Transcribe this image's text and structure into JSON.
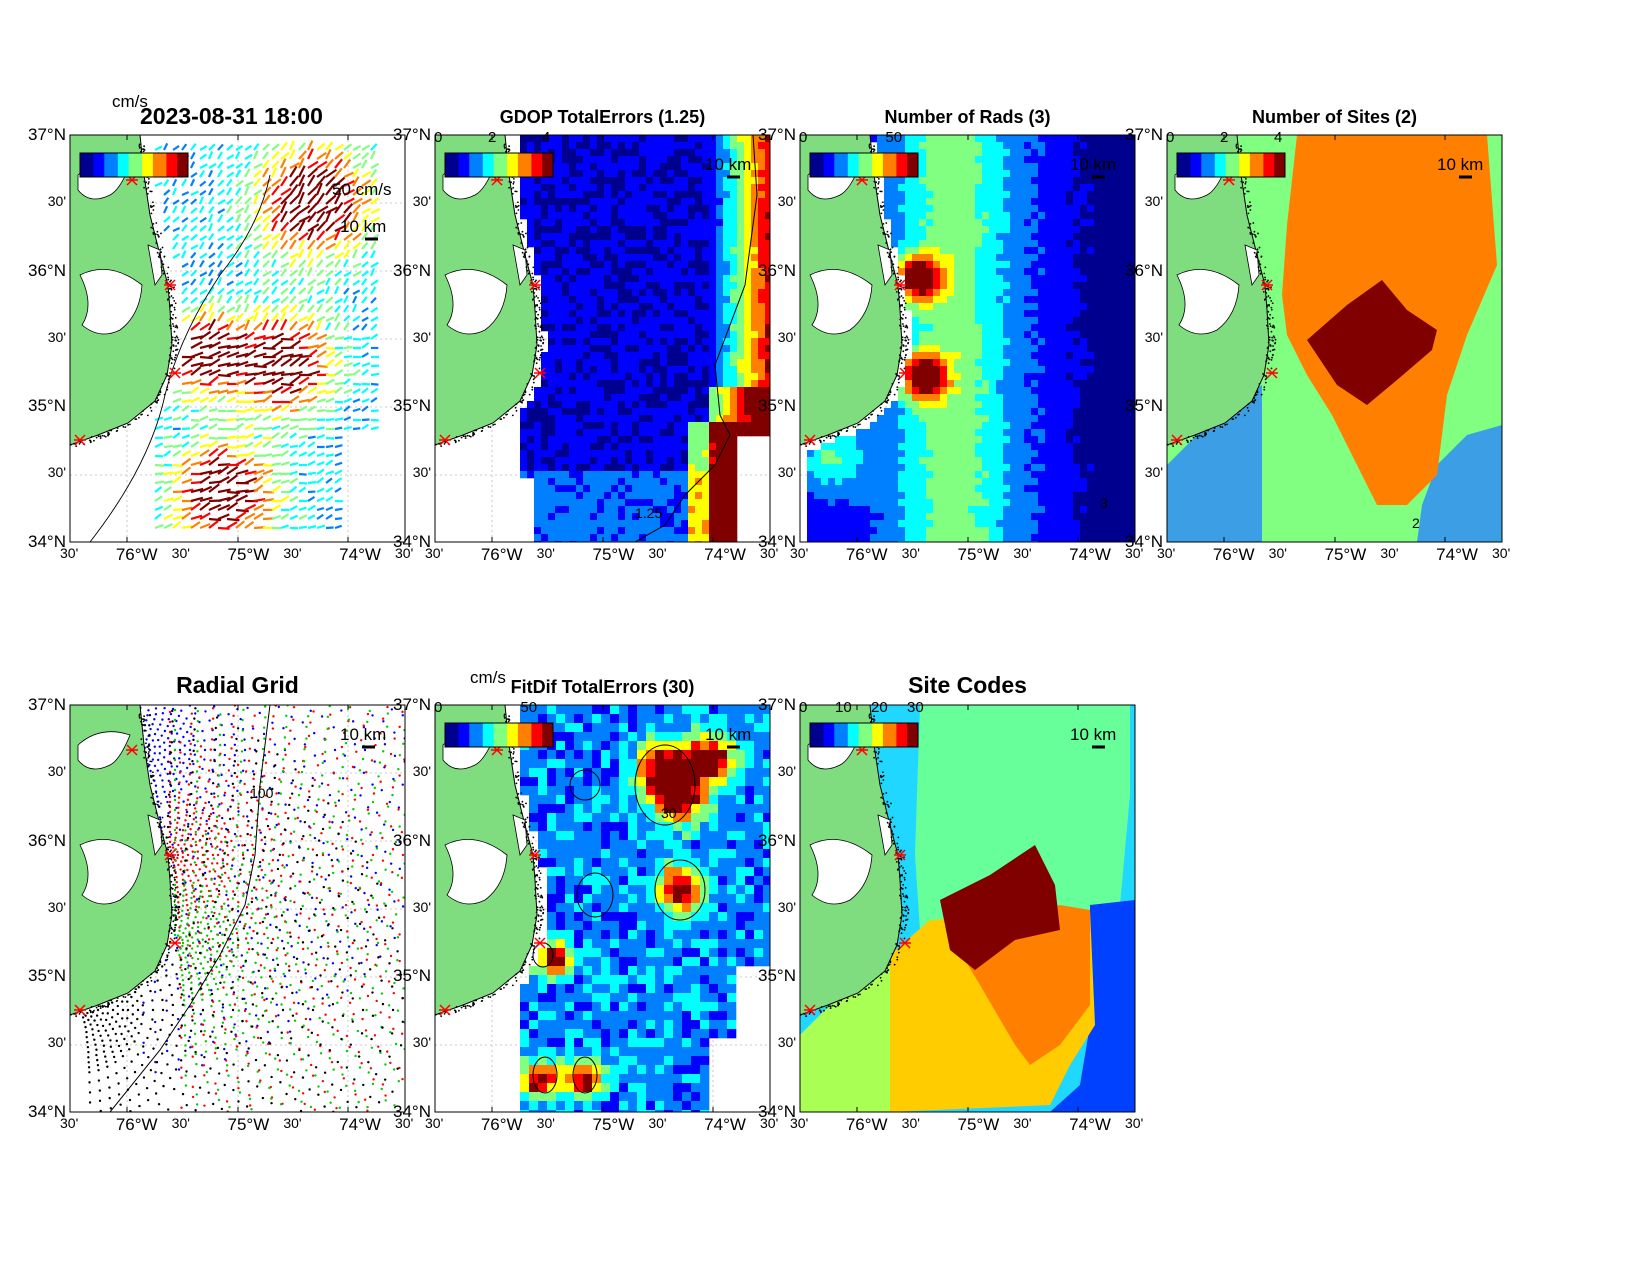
{
  "timestamp": "2023-08-31 18:00",
  "axes": {
    "lat_labels": [
      "37°N",
      "30'",
      "36°N",
      "30'",
      "35°N",
      "30'",
      "34°N"
    ],
    "lon_labels": [
      "30'",
      "76°W",
      "30'",
      "75°W",
      "30'",
      "74°W",
      "30'"
    ]
  },
  "scale_label": "10 km",
  "colors": {
    "land": "#7fdc7f",
    "ocean_default": "#ffffff",
    "site_marker": "#ff0000",
    "jet_colormap": [
      "#00008f",
      "#0000ff",
      "#0080ff",
      "#00ffff",
      "#80ff80",
      "#ffff00",
      "#ff8000",
      "#ff0000",
      "#800000"
    ]
  },
  "panels": [
    {
      "id": "total-vectors",
      "title": "",
      "unit": "cm/s",
      "colorbar_ticks": [],
      "vector_scale_label": "50 cm/s",
      "icon": "current-vector-arrows"
    },
    {
      "id": "gdop",
      "title": "GDOP TotalErrors (1.25)",
      "unit": "",
      "colorbar_ticks": [
        "0",
        "2",
        "4"
      ],
      "contour_label": "1.25"
    },
    {
      "id": "num-rads",
      "title": "Number of Rads (3)",
      "unit": "",
      "colorbar_ticks": [
        "0",
        "50"
      ],
      "contour_label": "3"
    },
    {
      "id": "num-sites",
      "title": "Number of Sites (2)",
      "unit": "",
      "colorbar_ticks": [
        "0",
        "2",
        "4"
      ],
      "contour_label": "2"
    },
    {
      "id": "radial-grid",
      "title": "Radial Grid",
      "unit": "",
      "colorbar_ticks": [],
      "contour_label": "100"
    },
    {
      "id": "fitdif",
      "title": "FitDif TotalErrors (30)",
      "unit": "cm/s",
      "colorbar_ticks": [
        "0",
        "50"
      ],
      "contour_label": "30"
    },
    {
      "id": "site-codes",
      "title": "Site Codes",
      "unit": "",
      "colorbar_ticks": [
        "0",
        "10",
        "20",
        "30"
      ]
    }
  ]
}
